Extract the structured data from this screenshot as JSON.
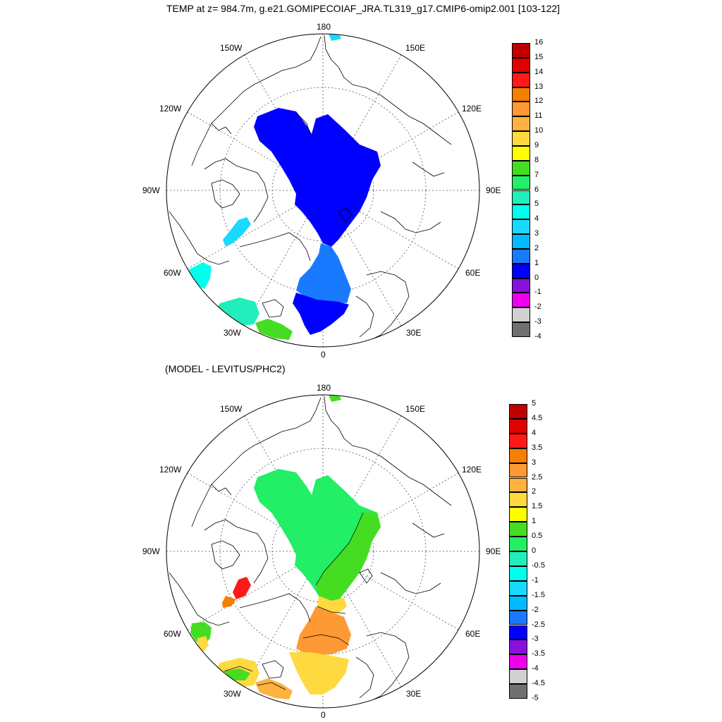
{
  "title": "TEMP at z= 984.7m, g.e21.GOMIPECOIAF_JRA.TL319_g17.CMIP6-omip2.001 [103-122]",
  "subtitle": "(MODEL - LEVITUS/PHC2)",
  "lon_labels": {
    "l180": "180",
    "l150w": "150W",
    "l150e": "150E",
    "l120w": "120W",
    "l120e": "120E",
    "l90w": "90W",
    "l90e": "90E",
    "l60w": "60W",
    "l60e": "60E",
    "l30w": "30W",
    "l30e": "30E",
    "l0": "0"
  },
  "top_colorbar": {
    "labels": [
      "16",
      "15",
      "14",
      "13",
      "12",
      "11",
      "10",
      "9",
      "8",
      "7",
      "6",
      "5",
      "4",
      "3",
      "2",
      "1",
      "0",
      "-1",
      "-2",
      "-3",
      "-4"
    ],
    "colors": [
      "#C00000",
      "#E00000",
      "#FF1A1A",
      "#F57F00",
      "#FF9933",
      "#FFB240",
      "#FFD940",
      "#FFFF00",
      "#44DD22",
      "#22EE66",
      "#22EEBB",
      "#00FFEE",
      "#1AD9FF",
      "#00BBFF",
      "#1A7AFF",
      "#0000FF",
      "#8811DD",
      "#EE00EE",
      "#D0D0D0",
      "#707070"
    ]
  },
  "bottom_colorbar": {
    "labels": [
      "5",
      "4.5",
      "4",
      "3.5",
      "3",
      "2.5",
      "2",
      "1.5",
      "1",
      "0.5",
      "0",
      "-0.5",
      "-1",
      "-1.5",
      "-2",
      "-2.5",
      "-3",
      "-3.5",
      "-4",
      "-4.5",
      "-5"
    ],
    "colors": [
      "#C00000",
      "#E00000",
      "#FF1A1A",
      "#F57F00",
      "#FF9933",
      "#FFB240",
      "#FFD940",
      "#FFFF00",
      "#44DD22",
      "#22EE66",
      "#22EEBB",
      "#00FFEE",
      "#1AD9FF",
      "#00BBFF",
      "#1A7AFF",
      "#0000FF",
      "#8811DD",
      "#EE00EE",
      "#D0D0D0",
      "#707070"
    ]
  },
  "map_colors": {
    "top_basin": "#0000FF",
    "top_fram": "#1A7AFF",
    "top_norwegian": "#0000FF",
    "top_baffin": "#1AD9FF",
    "top_labrador": "#00FFEE",
    "top_irminger": "#22EEBB",
    "top_iceland_s": "#44DD22",
    "bot_basin": "#22EE66",
    "bot_eurasian": "#44DD22",
    "bot_fram": "#FFD940",
    "bot_norwegian_orange": "#FF9933",
    "bot_norwegian_yellow": "#FFD940",
    "bot_baffin_red": "#FF1A1A",
    "bot_baffin_orange": "#F57F00",
    "bot_labrador": "#44DD22",
    "bot_irminger": "#FFD940",
    "land_line": "#000000",
    "grid_line": "#555555"
  }
}
